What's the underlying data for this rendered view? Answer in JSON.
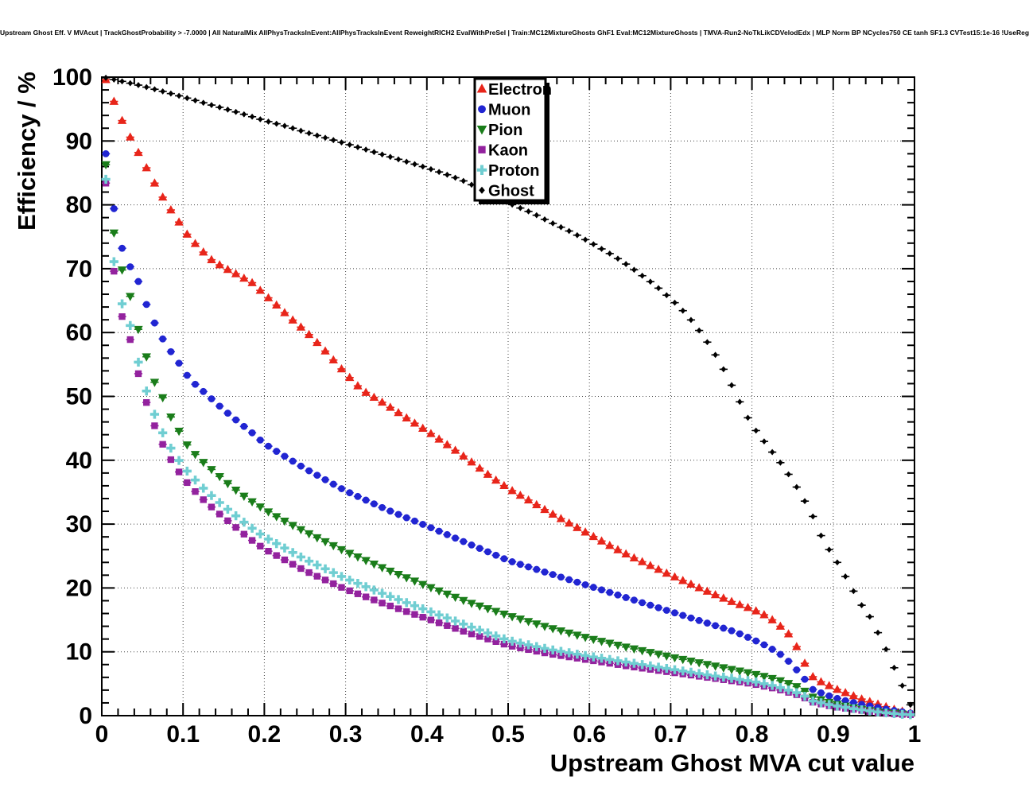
{
  "chart_data": {
    "type": "scatter",
    "title": "Upstream Ghost Eff. V MVAcut | TrackGhostProbability > -7.0000 | All NaturalMix AllPhysTracksInEvent:AllPhysTracksInEvent ReweightRICH2 EvalWithPreSel | Train:MC12MixtureGhosts GhF1 Eval:MC12MixtureGhosts | TMVA-Run2-NoTkLikCDVelodEdx | MLP Norm BP NCycles750 CE tanh SF1.3 CVTest15:1e-16 !UseReg",
    "xlabel": "Upstream Ghost MVA cut value",
    "ylabel": "Efficiency / %",
    "xlim": [
      0,
      1
    ],
    "ylim": [
      0,
      100
    ],
    "grid": true,
    "grid_style": "dotted",
    "legend_position": "top-right-inside",
    "x_ticks": [
      0,
      0.1,
      0.2,
      0.3,
      0.4,
      0.5,
      0.6,
      0.7,
      0.8,
      0.9,
      1
    ],
    "x_tick_labels": [
      "0",
      "0.1",
      "0.2",
      "0.3",
      "0.4",
      "0.5",
      "0.6",
      "0.7",
      "0.8",
      "0.9",
      "1"
    ],
    "y_ticks": [
      0,
      10,
      20,
      30,
      40,
      50,
      60,
      70,
      80,
      90,
      100
    ],
    "y_tick_labels": [
      "0",
      "10",
      "20",
      "30",
      "40",
      "50",
      "60",
      "70",
      "80",
      "90",
      "100"
    ],
    "x_minor_step": 0.02,
    "y_minor_step": 2,
    "marker_spacing_x": 0.01,
    "x_error_halfwidth": 0.005,
    "series": [
      {
        "name": "Electron",
        "color": "#e8251a",
        "marker": "triangle-up",
        "points": [
          [
            0.005,
            99.6
          ],
          [
            0.015,
            96.2
          ],
          [
            0.025,
            93.2
          ],
          [
            0.035,
            90.6
          ],
          [
            0.045,
            88.2
          ],
          [
            0.055,
            85.8
          ],
          [
            0.065,
            83.4
          ],
          [
            0.075,
            81.2
          ],
          [
            0.085,
            79.2
          ],
          [
            0.095,
            77.3
          ],
          [
            0.105,
            75.4
          ],
          [
            0.12,
            73.2
          ],
          [
            0.135,
            71.4
          ],
          [
            0.15,
            70.2
          ],
          [
            0.165,
            69.2
          ],
          [
            0.175,
            68.5
          ],
          [
            0.185,
            67.8
          ],
          [
            0.2,
            66
          ],
          [
            0.215,
            64.3
          ],
          [
            0.23,
            62.5
          ],
          [
            0.25,
            60.3
          ],
          [
            0.27,
            57.8
          ],
          [
            0.29,
            55
          ],
          [
            0.3,
            53.6
          ],
          [
            0.32,
            51
          ],
          [
            0.35,
            48.7
          ],
          [
            0.38,
            46.2
          ],
          [
            0.4,
            44.6
          ],
          [
            0.43,
            42
          ],
          [
            0.45,
            40.2
          ],
          [
            0.48,
            37.3
          ],
          [
            0.5,
            35.6
          ],
          [
            0.53,
            33.4
          ],
          [
            0.55,
            31.9
          ],
          [
            0.58,
            29.8
          ],
          [
            0.6,
            28.4
          ],
          [
            0.63,
            26.3
          ],
          [
            0.65,
            25
          ],
          [
            0.68,
            23.2
          ],
          [
            0.7,
            22
          ],
          [
            0.73,
            20.3
          ],
          [
            0.75,
            19.2
          ],
          [
            0.78,
            17.6
          ],
          [
            0.8,
            16.7
          ],
          [
            0.815,
            15.8
          ],
          [
            0.83,
            14.6
          ],
          [
            0.845,
            12.8
          ],
          [
            0.855,
            10.8
          ],
          [
            0.865,
            8.2
          ],
          [
            0.875,
            6.1
          ],
          [
            0.885,
            5.3
          ],
          [
            0.895,
            4.7
          ],
          [
            0.905,
            4.1
          ],
          [
            0.915,
            3.6
          ],
          [
            0.925,
            3.1
          ],
          [
            0.935,
            2.6
          ],
          [
            0.945,
            2.2
          ],
          [
            0.955,
            1.8
          ],
          [
            0.965,
            1.4
          ],
          [
            0.975,
            1.0
          ],
          [
            0.985,
            0.7
          ],
          [
            0.995,
            0.4
          ]
        ]
      },
      {
        "name": "Muon",
        "color": "#2125d2",
        "marker": "circle",
        "points": [
          [
            0.005,
            88
          ],
          [
            0.015,
            79.4
          ],
          [
            0.025,
            73.2
          ],
          [
            0.035,
            70.3
          ],
          [
            0.045,
            68
          ],
          [
            0.055,
            64.4
          ],
          [
            0.065,
            61.5
          ],
          [
            0.075,
            59
          ],
          [
            0.085,
            57
          ],
          [
            0.095,
            55.2
          ],
          [
            0.105,
            53.3
          ],
          [
            0.115,
            51.9
          ],
          [
            0.13,
            50.2
          ],
          [
            0.15,
            47.9
          ],
          [
            0.17,
            45.8
          ],
          [
            0.185,
            44.3
          ],
          [
            0.2,
            42.6
          ],
          [
            0.215,
            41.4
          ],
          [
            0.25,
            38.7
          ],
          [
            0.3,
            35.2
          ],
          [
            0.35,
            32.3
          ],
          [
            0.4,
            29.7
          ],
          [
            0.45,
            27
          ],
          [
            0.48,
            25.4
          ],
          [
            0.5,
            24.3
          ],
          [
            0.55,
            22.3
          ],
          [
            0.6,
            20.3
          ],
          [
            0.65,
            18.3
          ],
          [
            0.7,
            16.3
          ],
          [
            0.75,
            14.3
          ],
          [
            0.78,
            13.1
          ],
          [
            0.8,
            12
          ],
          [
            0.82,
            10.8
          ],
          [
            0.84,
            9.2
          ],
          [
            0.86,
            6.5
          ],
          [
            0.875,
            4.1
          ],
          [
            0.89,
            3.3
          ],
          [
            0.91,
            2.5
          ],
          [
            0.93,
            1.9
          ],
          [
            0.95,
            1.4
          ],
          [
            0.97,
            0.9
          ],
          [
            0.995,
            0.4
          ]
        ]
      },
      {
        "name": "Pion",
        "color": "#1a7d1a",
        "marker": "triangle-down",
        "points": [
          [
            0.005,
            86.3
          ],
          [
            0.015,
            75.6
          ],
          [
            0.025,
            69.8
          ],
          [
            0.033,
            66.7
          ],
          [
            0.045,
            60.5
          ],
          [
            0.055,
            56.2
          ],
          [
            0.063,
            52.7
          ],
          [
            0.075,
            49.8
          ],
          [
            0.083,
            47.2
          ],
          [
            0.093,
            45.1
          ],
          [
            0.1,
            43.2
          ],
          [
            0.112,
            41.3
          ],
          [
            0.122,
            40
          ],
          [
            0.14,
            38
          ],
          [
            0.16,
            35.8
          ],
          [
            0.18,
            33.9
          ],
          [
            0.2,
            32.3
          ],
          [
            0.22,
            30.8
          ],
          [
            0.25,
            28.8
          ],
          [
            0.3,
            25.7
          ],
          [
            0.35,
            22.9
          ],
          [
            0.4,
            20.3
          ],
          [
            0.45,
            17.8
          ],
          [
            0.5,
            15.7
          ],
          [
            0.55,
            13.8
          ],
          [
            0.6,
            12.1
          ],
          [
            0.65,
            10.6
          ],
          [
            0.7,
            9.2
          ],
          [
            0.75,
            7.9
          ],
          [
            0.8,
            6.6
          ],
          [
            0.82,
            6.0
          ],
          [
            0.84,
            5.3
          ],
          [
            0.86,
            4.3
          ],
          [
            0.875,
            2.9
          ],
          [
            0.9,
            1.9
          ],
          [
            0.93,
            1.1
          ],
          [
            0.96,
            0.5
          ],
          [
            0.995,
            0.15
          ]
        ]
      },
      {
        "name": "Kaon",
        "color": "#93229e",
        "marker": "square",
        "points": [
          [
            0.005,
            83.4
          ],
          [
            0.015,
            69.6
          ],
          [
            0.025,
            62.5
          ],
          [
            0.033,
            60
          ],
          [
            0.043,
            54.5
          ],
          [
            0.053,
            49.8
          ],
          [
            0.063,
            46
          ],
          [
            0.073,
            43
          ],
          [
            0.083,
            40.5
          ],
          [
            0.093,
            38.5
          ],
          [
            0.105,
            36.5
          ],
          [
            0.12,
            34.4
          ],
          [
            0.14,
            32.1
          ],
          [
            0.16,
            30
          ],
          [
            0.18,
            27.9
          ],
          [
            0.2,
            26.1
          ],
          [
            0.25,
            22.7
          ],
          [
            0.3,
            19.8
          ],
          [
            0.35,
            17.4
          ],
          [
            0.4,
            15.2
          ],
          [
            0.45,
            13
          ],
          [
            0.5,
            11
          ],
          [
            0.55,
            9.7
          ],
          [
            0.6,
            8.7
          ],
          [
            0.65,
            7.7
          ],
          [
            0.7,
            6.8
          ],
          [
            0.75,
            5.9
          ],
          [
            0.8,
            5.0
          ],
          [
            0.83,
            4.2
          ],
          [
            0.86,
            3.1
          ],
          [
            0.875,
            2.1
          ],
          [
            0.9,
            1.4
          ],
          [
            0.93,
            0.9
          ],
          [
            0.96,
            0.4
          ],
          [
            0.995,
            0.1
          ]
        ]
      },
      {
        "name": "Proton",
        "color": "#70ced2",
        "marker": "cross",
        "points": [
          [
            0.005,
            84
          ],
          [
            0.015,
            71.1
          ],
          [
            0.025,
            64.5
          ],
          [
            0.033,
            62.3
          ],
          [
            0.043,
            56.3
          ],
          [
            0.053,
            51.6
          ],
          [
            0.063,
            47.8
          ],
          [
            0.073,
            44.8
          ],
          [
            0.083,
            42.3
          ],
          [
            0.093,
            40.3
          ],
          [
            0.105,
            38.3
          ],
          [
            0.12,
            36.2
          ],
          [
            0.14,
            33.9
          ],
          [
            0.16,
            31.8
          ],
          [
            0.18,
            29.8
          ],
          [
            0.2,
            28
          ],
          [
            0.25,
            24.5
          ],
          [
            0.3,
            21.5
          ],
          [
            0.35,
            18.9
          ],
          [
            0.4,
            16.5
          ],
          [
            0.45,
            14.1
          ],
          [
            0.5,
            11.8
          ],
          [
            0.55,
            10.4
          ],
          [
            0.6,
            9.3
          ],
          [
            0.65,
            8.3
          ],
          [
            0.7,
            7.3
          ],
          [
            0.75,
            6.3
          ],
          [
            0.8,
            5.4
          ],
          [
            0.83,
            4.6
          ],
          [
            0.86,
            3.4
          ],
          [
            0.875,
            2.3
          ],
          [
            0.9,
            1.6
          ],
          [
            0.93,
            1.0
          ],
          [
            0.96,
            0.5
          ],
          [
            0.995,
            0.1
          ]
        ]
      },
      {
        "name": "Ghost",
        "color": "#000000",
        "marker": "diamond",
        "points": [
          [
            0.005,
            99.9
          ],
          [
            0.03,
            99.2
          ],
          [
            0.05,
            98.6
          ],
          [
            0.08,
            97.6
          ],
          [
            0.1,
            96.9
          ],
          [
            0.13,
            95.8
          ],
          [
            0.15,
            95.1
          ],
          [
            0.18,
            94
          ],
          [
            0.2,
            93.2
          ],
          [
            0.23,
            92.2
          ],
          [
            0.25,
            91.4
          ],
          [
            0.3,
            89.6
          ],
          [
            0.35,
            87.7
          ],
          [
            0.4,
            85.8
          ],
          [
            0.43,
            84.5
          ],
          [
            0.45,
            83.5
          ],
          [
            0.48,
            81.4
          ],
          [
            0.5,
            80.3
          ],
          [
            0.53,
            78.7
          ],
          [
            0.55,
            77.4
          ],
          [
            0.58,
            75.6
          ],
          [
            0.6,
            74.2
          ],
          [
            0.63,
            72
          ],
          [
            0.65,
            70.3
          ],
          [
            0.68,
            67.5
          ],
          [
            0.7,
            65.3
          ],
          [
            0.72,
            62.8
          ],
          [
            0.74,
            59.5
          ],
          [
            0.76,
            55.5
          ],
          [
            0.78,
            50.5
          ],
          [
            0.79,
            47.8
          ],
          [
            0.8,
            45.5
          ],
          [
            0.81,
            43.8
          ],
          [
            0.82,
            42.1
          ],
          [
            0.84,
            38.8
          ],
          [
            0.86,
            34.8
          ],
          [
            0.875,
            31.2
          ],
          [
            0.885,
            28.2
          ],
          [
            0.895,
            26
          ],
          [
            0.905,
            24
          ],
          [
            0.915,
            21.8
          ],
          [
            0.925,
            19.5
          ],
          [
            0.935,
            17.3
          ],
          [
            0.945,
            15.5
          ],
          [
            0.955,
            13
          ],
          [
            0.965,
            10.4
          ],
          [
            0.975,
            7.5
          ],
          [
            0.985,
            4.7
          ],
          [
            0.995,
            1.7
          ]
        ]
      }
    ],
    "legend": {
      "entries": [
        "Electron",
        "Muon",
        "Pion",
        "Kaon",
        "Proton",
        "Ghost"
      ]
    }
  }
}
